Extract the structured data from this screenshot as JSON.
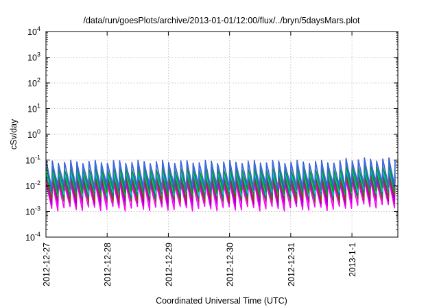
{
  "chart_data": {
    "type": "line",
    "title": "/data/run/goesPlots/archive/2013-01-01/12:00/flux/../bryn/5daysMars.plot",
    "xlabel": "Coordinated Universal Time (UTC)",
    "ylabel": "cSv/day",
    "y_scale": "log",
    "ylim": [
      0.0001,
      10000
    ],
    "x_tick_labels": [
      "2012-12-27",
      "2012-12-28",
      "2012-12-29",
      "2012-12-30",
      "2012-12-31",
      "2013-1-1"
    ],
    "x_range_days": [
      0,
      5.75
    ],
    "y_ticks": [
      {
        "base": "10",
        "exp": "4"
      },
      {
        "base": "10",
        "exp": "3"
      },
      {
        "base": "10",
        "exp": "2"
      },
      {
        "base": "10",
        "exp": "1"
      },
      {
        "base": "10",
        "exp": "0"
      },
      {
        "base": "10",
        "exp": "-1"
      },
      {
        "base": "10",
        "exp": "-2"
      },
      {
        "base": "10",
        "exp": "-3"
      },
      {
        "base": "10",
        "exp": "-4"
      }
    ],
    "grid": true,
    "reference_line": {
      "value": 0.1,
      "color": "#ff9999"
    },
    "sawtooth_period_days": 0.1,
    "series": [
      {
        "color": "#ff00ff",
        "peak": 0.012,
        "trough": 0.0013
      },
      {
        "color": "#cc00cc",
        "peak": 0.016,
        "trough": 0.002
      },
      {
        "color": "#9400d3",
        "peak": 0.02,
        "trough": 0.0025
      },
      {
        "color": "#ff0000",
        "peak": 0.025,
        "trough": 0.003
      },
      {
        "color": "#8b4513",
        "peak": 0.02,
        "trough": 0.0028
      },
      {
        "color": "#008080",
        "peak": 0.03,
        "trough": 0.004
      },
      {
        "color": "#00cccc",
        "peak": 0.035,
        "trough": 0.005
      },
      {
        "color": "#00a000",
        "peak": 0.05,
        "trough": 0.006
      },
      {
        "color": "#1f5fd0",
        "peak": 0.085,
        "trough": 0.008
      },
      {
        "color": "#4169e1",
        "peak": 0.075,
        "trough": 0.01
      }
    ],
    "late_rise_start_day": 4.85
  }
}
